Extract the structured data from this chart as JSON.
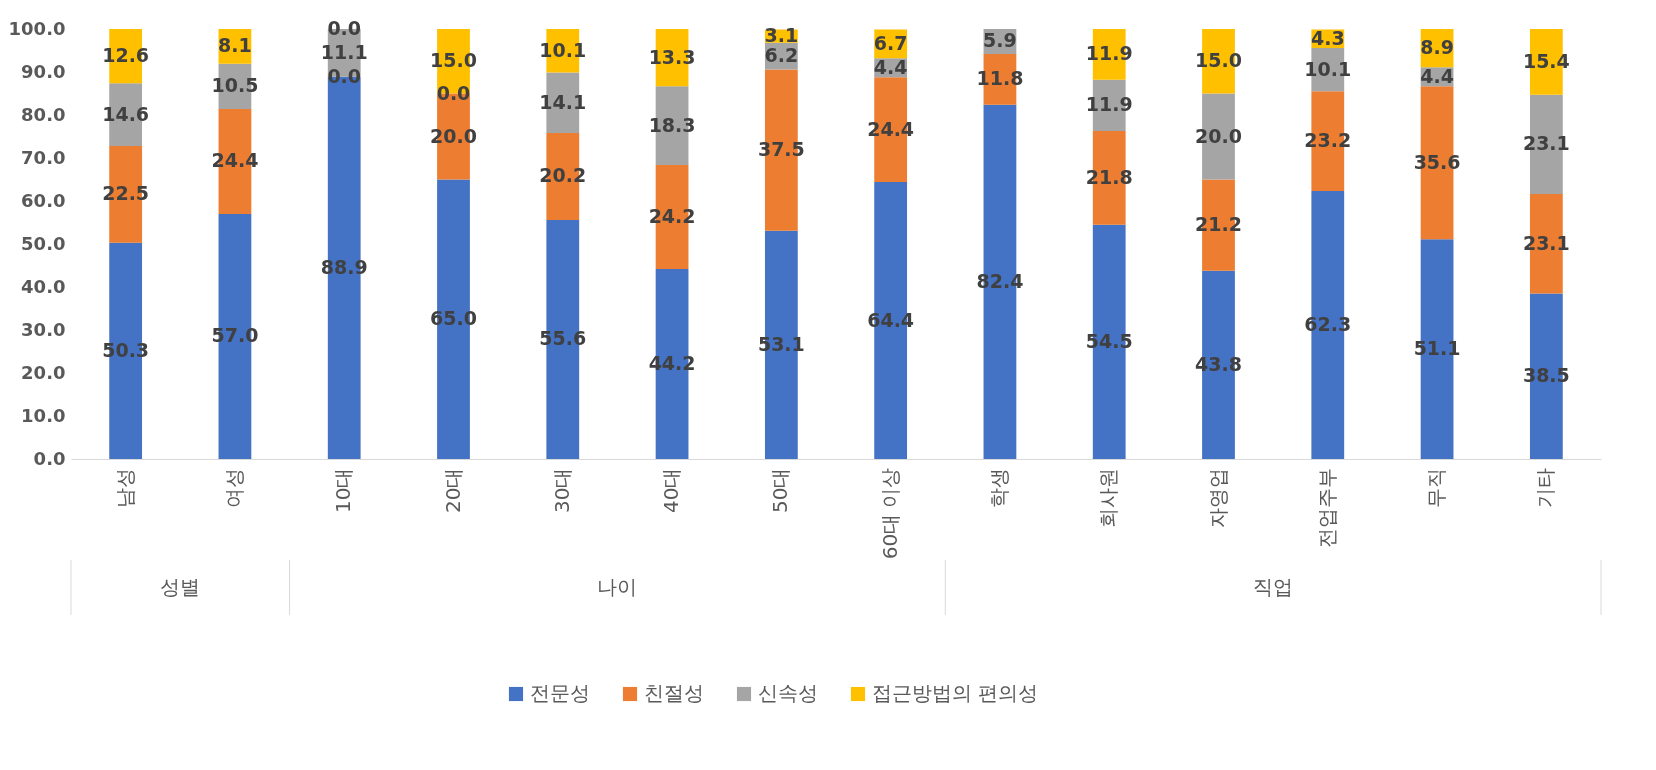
{
  "chart_data": {
    "type": "bar",
    "stacked": true,
    "grid": false,
    "legend": "bottom",
    "categories": [
      "남성",
      "여성",
      "10대",
      "20대",
      "30대",
      "40대",
      "50대",
      "60대 이상",
      "학생",
      "회사원",
      "자영업",
      "전업주부",
      "무직",
      "기타"
    ],
    "series": [
      {
        "name": "전문성",
        "color": "#4472c4",
        "values": [
          50.3,
          57.0,
          88.9,
          65.0,
          55.6,
          44.2,
          53.1,
          64.4,
          82.4,
          54.5,
          43.8,
          62.3,
          51.1,
          38.5
        ],
        "value_labels": [
          "50.3",
          "57.0",
          "88.9",
          "65.0",
          "55.6",
          "44.2",
          "53.1",
          "64.4",
          "82.4",
          "54.5",
          "43.8",
          "62.3",
          "51.1",
          "38.5"
        ]
      },
      {
        "name": "친절성",
        "color": "#ed7d31",
        "values": [
          22.5,
          24.4,
          0.0,
          20.0,
          20.2,
          24.2,
          37.5,
          24.4,
          11.8,
          21.8,
          21.2,
          23.2,
          35.6,
          23.1
        ],
        "value_labels": [
          "22.5",
          "24.4",
          "0.0",
          "20.0",
          "20.2",
          "24.2",
          "37.5",
          "24.4",
          "11.8",
          "21.8",
          "21.2",
          "23.2",
          "35.6",
          "23.1"
        ]
      },
      {
        "name": "신속성",
        "color": "#a5a5a5",
        "values": [
          14.6,
          10.5,
          11.1,
          0.0,
          14.1,
          18.3,
          6.2,
          4.4,
          5.9,
          11.9,
          20.0,
          10.1,
          4.4,
          23.1
        ],
        "value_labels": [
          "14.6",
          "10.5",
          "11.1",
          "0.0",
          "14.1",
          "18.3",
          "6.2",
          "4.4",
          "5.9",
          "11.9",
          "20.0",
          "10.1",
          "4.4",
          "23.1"
        ]
      },
      {
        "name": "접근방법의 편의성",
        "color": "#ffc000",
        "values": [
          12.6,
          8.1,
          0.0,
          15.0,
          10.1,
          13.3,
          3.1,
          6.7,
          null,
          11.9,
          15.0,
          4.3,
          8.9,
          15.4
        ],
        "value_labels": [
          "12.6",
          "8.1",
          "0.0",
          "15.0",
          "10.1",
          "13.3",
          "3.1",
          "6.7",
          null,
          "11.9",
          "15.0",
          "4.3",
          "8.9",
          "15.4"
        ]
      }
    ],
    "ylim": [
      0,
      100
    ],
    "yticks": [
      {
        "value": 0,
        "label": "0.0"
      },
      {
        "value": 10,
        "label": "10.0"
      },
      {
        "value": 20,
        "label": "20.0"
      },
      {
        "value": 30,
        "label": "30.0"
      },
      {
        "value": 40,
        "label": "40.0"
      },
      {
        "value": 50,
        "label": "50.0"
      },
      {
        "value": 60,
        "label": "60.0"
      },
      {
        "value": 70,
        "label": "70.0"
      },
      {
        "value": 80,
        "label": "80.0"
      },
      {
        "value": 90,
        "label": "90.0"
      },
      {
        "value": 100,
        "label": "100.0"
      }
    ],
    "annotations": [
      "성별",
      "나이",
      "직업"
    ]
  }
}
